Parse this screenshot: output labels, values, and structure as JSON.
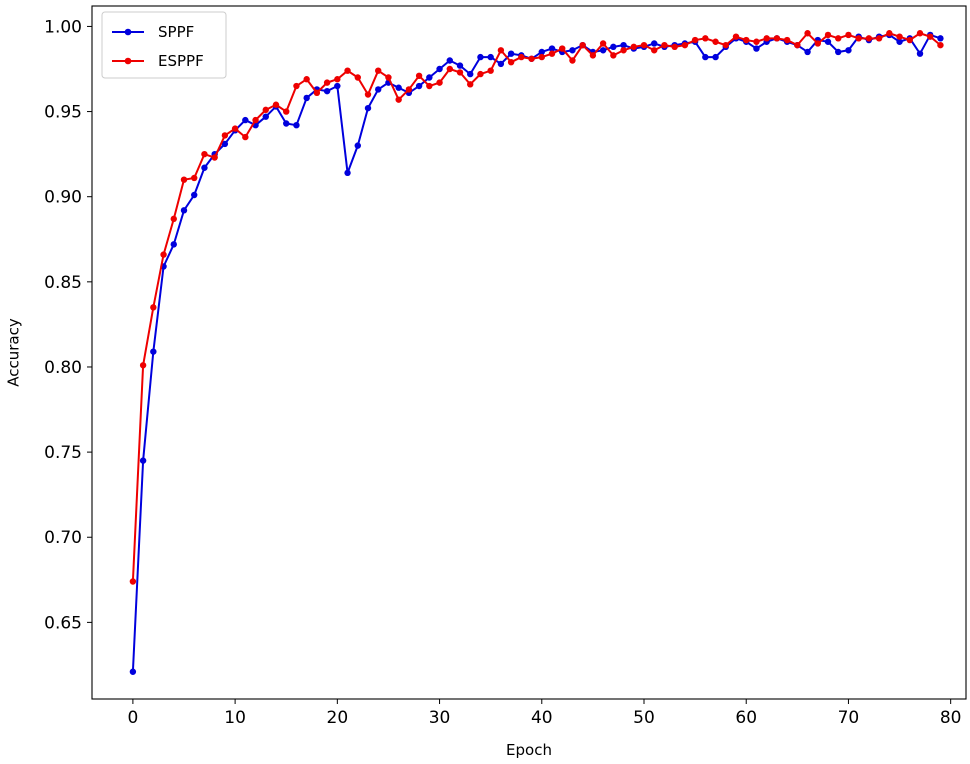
{
  "chart_data": {
    "type": "line",
    "xlabel": "Epoch",
    "ylabel": "Accuracy",
    "xlim": [
      -4,
      81.5
    ],
    "ylim": [
      0.605,
      1.012
    ],
    "xticks": [
      0,
      10,
      20,
      30,
      40,
      50,
      60,
      70,
      80
    ],
    "yticks": [
      0.65,
      0.7,
      0.75,
      0.8,
      0.85,
      0.9,
      0.95,
      1.0
    ],
    "xtick_labels": [
      "0",
      "10",
      "20",
      "30",
      "40",
      "50",
      "60",
      "70",
      "80"
    ],
    "ytick_labels": [
      "0.65",
      "0.70",
      "0.75",
      "0.80",
      "0.85",
      "0.90",
      "0.95",
      "1.00"
    ],
    "grid": false,
    "legend_position": "top-left",
    "x": [
      0,
      1,
      2,
      3,
      4,
      5,
      6,
      7,
      8,
      9,
      10,
      11,
      12,
      13,
      14,
      15,
      16,
      17,
      18,
      19,
      20,
      21,
      22,
      23,
      24,
      25,
      26,
      27,
      28,
      29,
      30,
      31,
      32,
      33,
      34,
      35,
      36,
      37,
      38,
      39,
      40,
      41,
      42,
      43,
      44,
      45,
      46,
      47,
      48,
      49,
      50,
      51,
      52,
      53,
      54,
      55,
      56,
      57,
      58,
      59,
      60,
      61,
      62,
      63,
      64,
      65,
      66,
      67,
      68,
      69,
      70,
      71,
      72,
      73,
      74,
      75,
      76,
      77,
      78,
      79
    ],
    "series": [
      {
        "name": "SPPF",
        "color": "#0000dd",
        "values": [
          0.621,
          0.745,
          0.809,
          0.859,
          0.872,
          0.892,
          0.901,
          0.917,
          0.925,
          0.931,
          0.939,
          0.945,
          0.942,
          0.947,
          0.953,
          0.943,
          0.942,
          0.958,
          0.963,
          0.962,
          0.965,
          0.914,
          0.93,
          0.952,
          0.963,
          0.967,
          0.964,
          0.961,
          0.965,
          0.97,
          0.975,
          0.98,
          0.977,
          0.972,
          0.982,
          0.982,
          0.978,
          0.984,
          0.983,
          0.981,
          0.985,
          0.987,
          0.985,
          0.986,
          0.989,
          0.985,
          0.986,
          0.988,
          0.989,
          0.987,
          0.988,
          0.99,
          0.988,
          0.989,
          0.99,
          0.991,
          0.982,
          0.982,
          0.988,
          0.993,
          0.991,
          0.987,
          0.991,
          0.993,
          0.991,
          0.989,
          0.985,
          0.992,
          0.991,
          0.985,
          0.986,
          0.994,
          0.992,
          0.994,
          0.995,
          0.991,
          0.993,
          0.984,
          0.995,
          0.993
        ]
      },
      {
        "name": "ESPPF",
        "color": "#ee0000",
        "values": [
          0.674,
          0.801,
          0.835,
          0.866,
          0.887,
          0.91,
          0.911,
          0.925,
          0.923,
          0.936,
          0.94,
          0.935,
          0.945,
          0.951,
          0.954,
          0.95,
          0.965,
          0.969,
          0.961,
          0.967,
          0.969,
          0.974,
          0.97,
          0.96,
          0.974,
          0.97,
          0.957,
          0.963,
          0.971,
          0.965,
          0.967,
          0.975,
          0.973,
          0.966,
          0.972,
          0.974,
          0.986,
          0.979,
          0.982,
          0.981,
          0.982,
          0.984,
          0.987,
          0.98,
          0.989,
          0.983,
          0.99,
          0.983,
          0.986,
          0.988,
          0.989,
          0.986,
          0.989,
          0.988,
          0.989,
          0.992,
          0.993,
          0.991,
          0.989,
          0.994,
          0.992,
          0.991,
          0.993,
          0.993,
          0.992,
          0.989,
          0.996,
          0.99,
          0.995,
          0.993,
          0.995,
          0.993,
          0.993,
          0.993,
          0.996,
          0.994,
          0.992,
          0.996,
          0.994,
          0.989
        ]
      }
    ]
  }
}
